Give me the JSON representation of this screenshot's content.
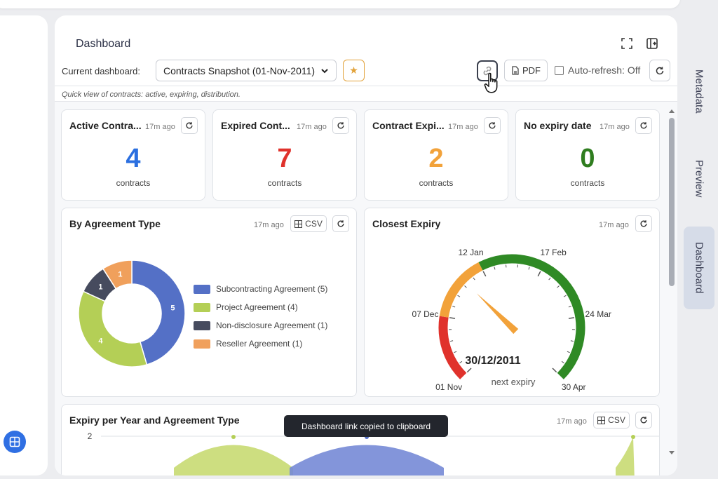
{
  "header": {
    "title": "Dashboard",
    "current_dashboard_label": "Current dashboard:",
    "selected_dashboard": "Contracts Snapshot (01-Nov-2011)",
    "pdf_label": "PDF",
    "auto_refresh_label": "Auto-refresh: Off",
    "description": "Quick view of contracts: active, expiring, distribution."
  },
  "kpis": [
    {
      "title": "Active Contra...",
      "ago": "17m ago",
      "value": "4",
      "unit": "contracts",
      "color": "#2b6fe0"
    },
    {
      "title": "Expired Cont...",
      "ago": "17m ago",
      "value": "7",
      "unit": "contracts",
      "color": "#e0322c"
    },
    {
      "title": "Contract Expi...",
      "ago": "17m ago",
      "value": "2",
      "unit": "contracts",
      "color": "#f2a23a"
    },
    {
      "title": "No expiry date",
      "ago": "17m ago",
      "value": "0",
      "unit": "contracts",
      "color": "#2f7d1f"
    }
  ],
  "agreement_card": {
    "title": "By Agreement Type",
    "ago": "17m ago",
    "csv_label": "CSV"
  },
  "expiry_card": {
    "title": "Closest Expiry",
    "ago": "17m ago",
    "value": "30/12/2011",
    "caption": "next expiry",
    "tick_labels": [
      "01 Nov",
      "07 Dec",
      "12 Jan",
      "17 Feb",
      "24 Mar",
      "30 Apr"
    ]
  },
  "year_card": {
    "title": "Expiry per Year and Agreement Type",
    "ago": "17m ago",
    "csv_label": "CSV",
    "y_tick": "2"
  },
  "tooltip": "Dashboard link copied to clipboard",
  "right_tabs": [
    "Metadata",
    "Preview",
    "Dashboard"
  ],
  "chart_data": [
    {
      "type": "pie",
      "title": "By Agreement Type",
      "categories": [
        "Subcontracting Agreement",
        "Project Agreement",
        "Non-disclosure Agreement",
        "Reseller Agreement"
      ],
      "values": [
        5,
        4,
        1,
        1
      ],
      "legend_labels": [
        "Subcontracting Agreement (5)",
        "Project Agreement (4)",
        "Non-disclosure Agreement (1)",
        "Reseller Agreement (1)"
      ],
      "colors": [
        "#5470c6",
        "#b4cf56",
        "#464b5e",
        "#f0a05c"
      ],
      "legend": "right"
    },
    {
      "type": "gauge",
      "title": "Closest Expiry",
      "min": "01 Nov",
      "max": "30 Apr",
      "value": "30/12/2011",
      "value_fraction": 0.33,
      "ticks": [
        "01 Nov",
        "07 Dec",
        "12 Jan",
        "17 Feb",
        "24 Mar",
        "30 Apr"
      ],
      "bands": [
        {
          "to_fraction": 0.2,
          "color": "#e0322c"
        },
        {
          "to_fraction": 0.4,
          "color": "#f2a23a"
        },
        {
          "to_fraction": 1.0,
          "color": "#2f8a25"
        }
      ]
    },
    {
      "type": "area",
      "title": "Expiry per Year and Agreement Type",
      "y_ticks": [
        2
      ],
      "series": [
        {
          "color": "#b4cf56"
        },
        {
          "color": "#5470c6"
        }
      ]
    }
  ]
}
